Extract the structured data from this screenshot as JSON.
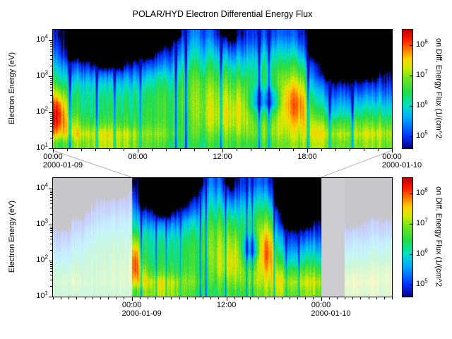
{
  "title": "POLAR/HYD  Electron Differential Energy Flux",
  "colors": {
    "background": "#ffffff",
    "axis": "#000000",
    "connector": "#b3b3b3",
    "no_data_gray": "#ccccd0"
  },
  "chart_data": [
    {
      "type": "heatmap",
      "panel": "top",
      "title": "POLAR/HYD  Electron Differential Energy Flux",
      "ylabel": "Electron Energy (eV)",
      "y_scale": "log",
      "y_range_ev": [
        10,
        20000
      ],
      "x_range_hours": [
        0,
        24
      ],
      "x_ticks": [
        {
          "hour": 0,
          "label": "00:00"
        },
        {
          "hour": 6,
          "label": "06:00"
        },
        {
          "hour": 12,
          "label": "12:00"
        },
        {
          "hour": 18,
          "label": "18:00"
        },
        {
          "hour": 24,
          "label": "00:00"
        }
      ],
      "x_date_labels": [
        {
          "hour": 0,
          "label": "2000-01-09"
        },
        {
          "hour": 24,
          "label": "2000-01-10"
        }
      ],
      "y_ticks": [
        {
          "log10_ev": 1,
          "label": "10^1"
        },
        {
          "log10_ev": 2,
          "label": "10^2"
        },
        {
          "log10_ev": 3,
          "label": "10^3"
        },
        {
          "log10_ev": 4,
          "label": "10^4"
        }
      ],
      "colorbar": {
        "label": "on Diff. Energy Flux (1/(cm^2",
        "log10_range": [
          4.6,
          8.5
        ],
        "ticks": [
          {
            "log10": 5,
            "label": "10^5"
          },
          {
            "log10": 6,
            "label": "10^6"
          },
          {
            "log10": 7,
            "label": "10^7"
          },
          {
            "log10": 8,
            "label": "10^8"
          }
        ]
      },
      "colormap_stops": [
        {
          "v": 4.6,
          "color": "#000082"
        },
        {
          "v": 5.0,
          "color": "#0033ff"
        },
        {
          "v": 5.6,
          "color": "#00aaff"
        },
        {
          "v": 6.0,
          "color": "#00e1c8"
        },
        {
          "v": 6.45,
          "color": "#23dc46"
        },
        {
          "v": 6.95,
          "color": "#7de41e"
        },
        {
          "v": 7.25,
          "color": "#d2eb00"
        },
        {
          "v": 7.55,
          "color": "#ffd200"
        },
        {
          "v": 7.85,
          "color": "#ff7800"
        },
        {
          "v": 8.15,
          "color": "#ff1e00"
        },
        {
          "v": 8.5,
          "color": "#be0000"
        }
      ],
      "energy_bins_log10_ev": {
        "min": 1.0,
        "max": 4.3,
        "count": 12
      },
      "time_bins_hours": {
        "start": 0,
        "step": 1,
        "count": 24
      },
      "blue_streak_hours": [
        1.2,
        3.1,
        4.35,
        6.2,
        8.7,
        9.4,
        11.9,
        14.6,
        15.3,
        18.05,
        19.6,
        21.2
      ],
      "values_log10_flux": [
        [
          6.6,
          7.6,
          8.1,
          8.2,
          7.9,
          7.2,
          6.5,
          6.0,
          5.6,
          5.2,
          4.9,
          4.7
        ],
        [
          6.9,
          7.4,
          7.0,
          6.5,
          6.3,
          6.2,
          5.9,
          5.4,
          4.9,
          0,
          0,
          0
        ],
        [
          7.0,
          7.3,
          6.7,
          6.4,
          6.3,
          6.2,
          6.0,
          5.5,
          4.9,
          0,
          0,
          0
        ],
        [
          7.1,
          7.3,
          6.6,
          6.3,
          6.2,
          6.1,
          5.8,
          5.2,
          0,
          0,
          0,
          0
        ],
        [
          7.1,
          7.3,
          6.7,
          6.4,
          6.3,
          6.1,
          5.8,
          5.2,
          0,
          0,
          0,
          0
        ],
        [
          7.0,
          7.2,
          6.6,
          6.4,
          6.3,
          6.2,
          5.9,
          5.4,
          4.8,
          0,
          0,
          0
        ],
        [
          6.8,
          7.0,
          6.6,
          6.5,
          6.4,
          6.3,
          6.0,
          5.6,
          5.0,
          0,
          0,
          0
        ],
        [
          6.6,
          6.9,
          6.6,
          6.5,
          6.5,
          6.4,
          6.2,
          5.8,
          5.2,
          4.7,
          0,
          0
        ],
        [
          6.5,
          6.8,
          6.6,
          6.6,
          6.6,
          6.5,
          6.3,
          6.0,
          5.6,
          5.2,
          4.8,
          0
        ],
        [
          6.3,
          6.5,
          6.5,
          6.6,
          6.7,
          6.7,
          6.6,
          6.4,
          6.1,
          5.8,
          5.5,
          5.2
        ],
        [
          6.4,
          6.7,
          6.9,
          7.0,
          7.0,
          6.9,
          6.8,
          6.5,
          6.2,
          5.9,
          5.6,
          5.3
        ],
        [
          6.5,
          6.8,
          7.1,
          7.2,
          7.1,
          7.0,
          6.8,
          6.5,
          6.2,
          5.8,
          5.4,
          5.0
        ],
        [
          6.6,
          6.9,
          7.2,
          7.3,
          7.2,
          7.0,
          6.7,
          6.4,
          5.9,
          5.4,
          4.8,
          0
        ],
        [
          6.6,
          7.0,
          7.2,
          7.3,
          7.2,
          7.0,
          6.7,
          6.3,
          6.0,
          5.6,
          5.2,
          4.9
        ],
        [
          6.6,
          6.9,
          6.8,
          6.3,
          5.5,
          5.6,
          6.2,
          6.3,
          6.1,
          5.8,
          5.4,
          5.1
        ],
        [
          6.7,
          7.0,
          6.9,
          6.4,
          5.4,
          5.6,
          6.3,
          6.4,
          6.2,
          5.9,
          5.5,
          5.1
        ],
        [
          6.8,
          7.1,
          7.3,
          7.5,
          7.6,
          7.5,
          7.2,
          6.8,
          6.4,
          6.0,
          5.6,
          5.2
        ],
        [
          6.9,
          7.2,
          7.5,
          7.8,
          7.9,
          7.7,
          7.3,
          6.8,
          6.3,
          5.8,
          5.3,
          4.9
        ],
        [
          7.0,
          7.3,
          7.0,
          6.5,
          6.1,
          5.8,
          5.4,
          5.0,
          4.7,
          0,
          0,
          0
        ],
        [
          7.0,
          7.3,
          6.8,
          6.2,
          5.8,
          5.4,
          5.0,
          0,
          0,
          0,
          0,
          0
        ],
        [
          6.9,
          7.2,
          6.7,
          6.1,
          5.7,
          5.3,
          4.8,
          0,
          0,
          0,
          0,
          0
        ],
        [
          6.9,
          7.2,
          6.8,
          6.2,
          5.8,
          5.3,
          4.8,
          0,
          0,
          0,
          0,
          0
        ],
        [
          7.0,
          7.3,
          6.8,
          6.3,
          5.9,
          5.4,
          4.9,
          0,
          0,
          0,
          0,
          0
        ],
        [
          6.9,
          7.2,
          6.7,
          6.2,
          5.8,
          5.4,
          5.0,
          4.7,
          0,
          0,
          0,
          0
        ]
      ]
    },
    {
      "type": "heatmap",
      "panel": "bottom",
      "ylabel": "Electron Energy (eV)",
      "y_scale": "log",
      "y_range_ev": [
        10,
        20000
      ],
      "x_range_hours": [
        -10,
        33
      ],
      "highlight_hours": [
        0,
        24
      ],
      "context_style": "washed",
      "x_ticks": [
        {
          "hour": 0,
          "label": "00:00"
        },
        {
          "hour": 12,
          "label": "12:00"
        },
        {
          "hour": 24,
          "label": "00:00"
        }
      ],
      "x_date_labels": [
        {
          "hour": 0,
          "label": "2000-01-09"
        },
        {
          "hour": 24,
          "label": "2000-01-10"
        }
      ],
      "y_ticks": [
        {
          "log10_ev": 1,
          "label": "10^1"
        },
        {
          "log10_ev": 2,
          "label": "10^2"
        },
        {
          "log10_ev": 3,
          "label": "10^3"
        },
        {
          "log10_ev": 4,
          "label": "10^4"
        }
      ],
      "colorbar": {
        "label": "on Diff. Energy Flux (1/(cm^2",
        "log10_range": [
          4.6,
          8.5
        ],
        "ticks": [
          {
            "log10": 5,
            "label": "10^5"
          },
          {
            "log10": 6,
            "label": "10^6"
          },
          {
            "log10": 7,
            "label": "10^7"
          },
          {
            "log10": 8,
            "label": "10^8"
          }
        ]
      },
      "main_values_same_as_panel": 0,
      "context_left_values": [
        [
          6.5,
          6.8,
          6.4,
          6.0,
          5.6,
          5.2,
          4.9,
          0,
          0,
          0,
          0,
          0
        ],
        [
          6.6,
          6.9,
          6.5,
          6.1,
          5.7,
          5.3,
          4.9,
          0,
          0,
          0,
          0,
          0
        ],
        [
          6.6,
          7.0,
          6.6,
          6.2,
          5.9,
          5.5,
          5.1,
          4.8,
          0,
          0,
          0,
          0
        ],
        [
          6.5,
          6.8,
          6.6,
          6.3,
          6.0,
          5.7,
          5.3,
          4.9,
          0,
          0,
          0,
          0
        ],
        [
          6.4,
          6.7,
          6.5,
          6.4,
          6.2,
          5.9,
          5.5,
          5.1,
          4.8,
          0,
          0,
          0
        ],
        [
          6.4,
          6.6,
          6.5,
          6.4,
          6.3,
          6.1,
          5.8,
          5.4,
          5.0,
          4.7,
          0,
          0
        ],
        [
          6.5,
          6.7,
          6.6,
          6.5,
          6.4,
          6.2,
          5.9,
          5.5,
          5.1,
          4.8,
          0,
          0
        ],
        [
          6.5,
          6.8,
          6.7,
          6.6,
          6.5,
          6.3,
          6.0,
          5.6,
          5.2,
          4.8,
          0,
          0
        ],
        [
          6.6,
          6.9,
          6.8,
          6.7,
          6.5,
          6.3,
          6.0,
          5.7,
          5.3,
          4.9,
          0,
          0
        ],
        [
          6.6,
          7.0,
          7.0,
          6.8,
          6.6,
          6.4,
          6.1,
          5.8,
          5.4,
          5.0,
          4.7,
          0
        ]
      ],
      "context_right_values": [
        [
          -1,
          -1,
          -1,
          -1,
          -1,
          -1,
          -1,
          -1,
          -1,
          -1,
          -1,
          -1
        ],
        [
          -1,
          -1,
          -1,
          -1,
          -1,
          -1,
          -1,
          -1,
          -1,
          -1,
          -1,
          -1
        ],
        [
          -1,
          -1,
          -1,
          -1,
          -1,
          -1,
          -1,
          -1,
          -1,
          -1,
          -1,
          -1
        ],
        [
          6.8,
          7.0,
          6.6,
          6.1,
          5.7,
          5.3,
          4.9,
          0,
          0,
          0,
          0,
          0
        ],
        [
          6.9,
          7.1,
          6.7,
          6.2,
          5.8,
          5.4,
          5.0,
          0,
          0,
          0,
          0,
          0
        ],
        [
          6.8,
          7.1,
          6.8,
          6.3,
          5.9,
          5.5,
          5.0,
          4.7,
          0,
          0,
          0,
          0
        ],
        [
          6.9,
          7.2,
          6.8,
          6.4,
          6.0,
          5.6,
          5.1,
          4.8,
          0,
          0,
          0,
          0
        ],
        [
          6.8,
          7.1,
          6.9,
          6.5,
          6.1,
          5.7,
          5.2,
          4.8,
          0,
          0,
          0,
          0
        ],
        [
          6.9,
          7.2,
          7.0,
          6.6,
          6.2,
          5.8,
          5.3,
          4.9,
          0,
          0,
          0,
          0
        ]
      ]
    }
  ]
}
